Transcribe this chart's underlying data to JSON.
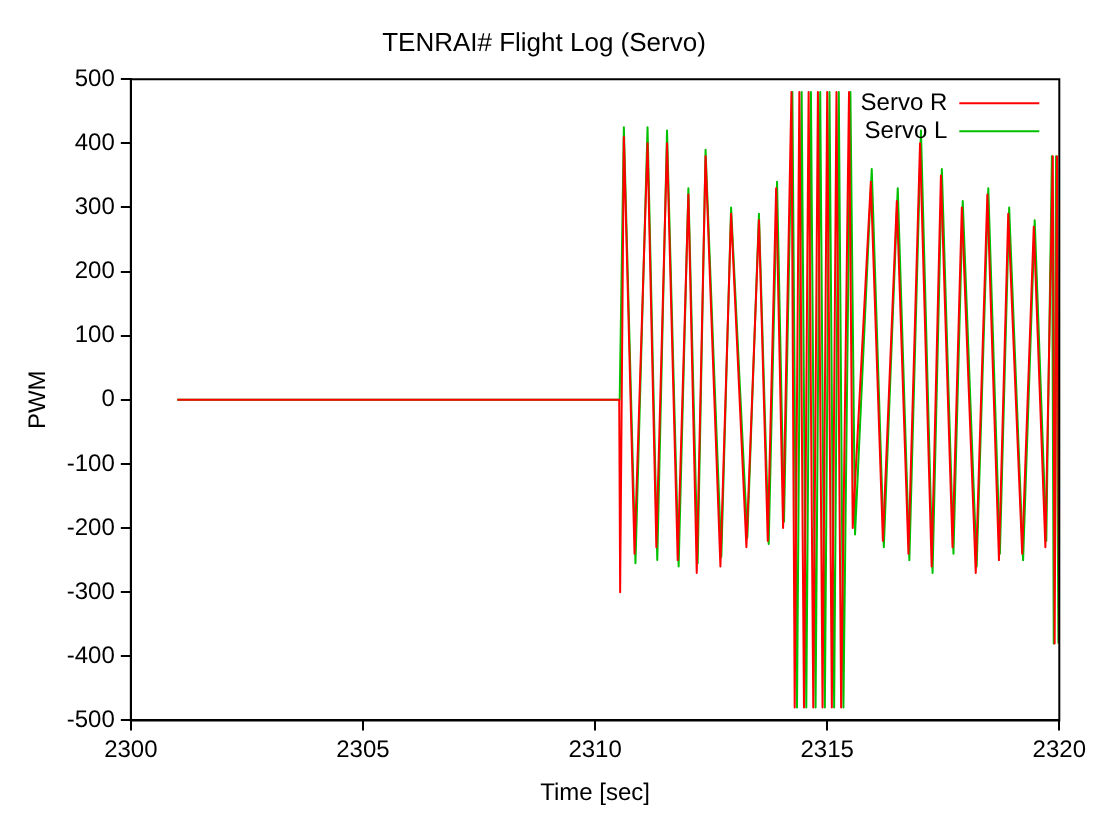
{
  "chart_data": {
    "type": "line",
    "title": "TENRAI# Flight Log (Servo)",
    "xlabel": "Time [sec]",
    "ylabel": "PWM",
    "xlim": [
      2300,
      2320
    ],
    "xticks": [
      2300,
      2305,
      2310,
      2315,
      2320
    ],
    "ylim": [
      -500,
      500
    ],
    "yticks": [
      -500,
      -400,
      -300,
      -200,
      -100,
      0,
      100,
      200,
      300,
      400,
      500
    ],
    "grid": false,
    "legend": "top right",
    "marker": "none",
    "line_style": "solid",
    "series": [
      {
        "name": "Servo R",
        "color": "#ff0000",
        "x": [
          2301,
          2310.52,
          2310.54,
          2310.62,
          2310.85,
          2311.13,
          2311.32,
          2311.55,
          2311.78,
          2312.01,
          2312.19,
          2312.38,
          2312.7,
          2312.93,
          2313.26,
          2313.53,
          2313.72,
          2313.9,
          2314.05,
          2314.23,
          2314.3,
          2314.4,
          2314.5,
          2314.6,
          2314.7,
          2314.8,
          2314.9,
          2315,
          2315.1,
          2315.2,
          2315.3,
          2315.47,
          2315.55,
          2315.94,
          2316.2,
          2316.5,
          2316.75,
          2317,
          2317.25,
          2317.45,
          2317.7,
          2317.9,
          2318.2,
          2318.45,
          2318.7,
          2318.9,
          2319.2,
          2319.45,
          2319.7,
          2319.86,
          2319.9,
          2319.95,
          2320
        ],
        "values": [
          0,
          0,
          -300,
          410,
          -240,
          400,
          -230,
          400,
          -250,
          320,
          -270,
          380,
          -260,
          290,
          -230,
          280,
          -220,
          330,
          -200,
          480,
          -480,
          480,
          -480,
          480,
          -480,
          480,
          -480,
          480,
          -480,
          480,
          -480,
          480,
          -200,
          340,
          -220,
          310,
          -240,
          400,
          -260,
          350,
          -230,
          300,
          -270,
          320,
          -250,
          290,
          -240,
          270,
          -230,
          380,
          -380,
          380,
          -380
        ]
      },
      {
        "name": "Servo L",
        "color": "#00c000",
        "x": [
          2301,
          2310.53,
          2310.62,
          2310.87,
          2311.13,
          2311.34,
          2311.55,
          2311.8,
          2312.01,
          2312.21,
          2312.38,
          2312.72,
          2312.93,
          2313.28,
          2313.53,
          2313.74,
          2313.92,
          2314.07,
          2314.25,
          2314.35,
          2314.45,
          2314.55,
          2314.65,
          2314.75,
          2314.85,
          2314.95,
          2315.05,
          2315.15,
          2315.25,
          2315.35,
          2315.5,
          2315.6,
          2315.96,
          2316.22,
          2316.52,
          2316.77,
          2317.02,
          2317.27,
          2317.47,
          2317.72,
          2317.92,
          2318.22,
          2318.47,
          2318.72,
          2318.92,
          2319.22,
          2319.47,
          2319.72,
          2319.84,
          2319.88,
          2319.93,
          2319.98
        ],
        "values": [
          0,
          0,
          425,
          -255,
          425,
          -250,
          420,
          -260,
          330,
          -255,
          390,
          -245,
          300,
          -215,
          290,
          -225,
          340,
          -190,
          480,
          -480,
          480,
          -480,
          480,
          -480,
          480,
          -480,
          480,
          -480,
          480,
          -480,
          480,
          -210,
          360,
          -230,
          330,
          -250,
          420,
          -270,
          360,
          -240,
          310,
          -260,
          330,
          -240,
          300,
          -250,
          280,
          -220,
          380,
          -380,
          380,
          -380
        ]
      }
    ]
  }
}
